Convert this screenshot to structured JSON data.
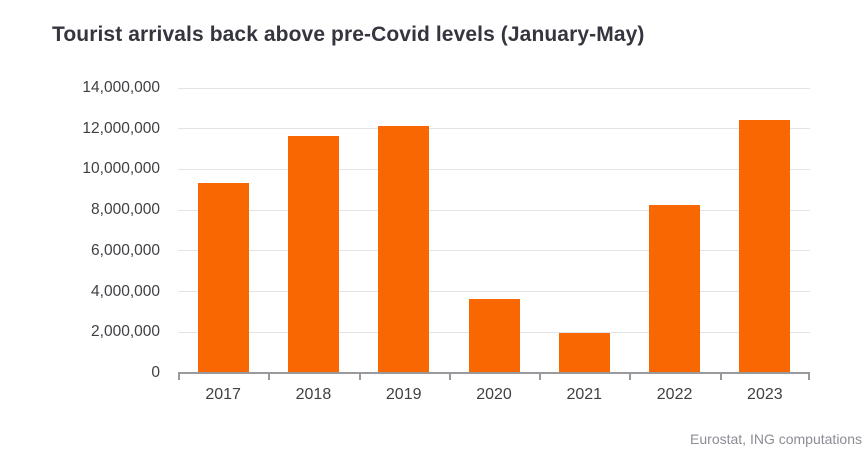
{
  "header": {
    "title": "Tourist arrivals back above pre-Covid levels (January-May)"
  },
  "footer": {
    "source": "Eurostat, ING computations"
  },
  "colors": {
    "background": "#FFFFFF",
    "bar": "#F96702",
    "title": "#35353F",
    "grid": "#E4E4E6",
    "axis": "#9A9A9E",
    "tick_label": "#3F3F44",
    "source": "#8C8C94"
  },
  "chart_data": {
    "type": "bar",
    "title": "Tourist arrivals back above pre-Covid levels (January-May)",
    "categories": [
      "2017",
      "2018",
      "2019",
      "2020",
      "2021",
      "2022",
      "2023"
    ],
    "values": [
      9300000,
      11600000,
      12100000,
      3600000,
      1900000,
      8200000,
      12400000
    ],
    "xlabel": "",
    "ylabel": "",
    "ylim": [
      0,
      14000000
    ],
    "ytick_step": 2000000,
    "ytick_labels": [
      "0",
      "2,000,000",
      "4,000,000",
      "6,000,000",
      "8,000,000",
      "10,000,000",
      "12,000,000",
      "14,000,000"
    ],
    "grid": true,
    "legend": false,
    "source": "Eurostat, ING computations"
  }
}
